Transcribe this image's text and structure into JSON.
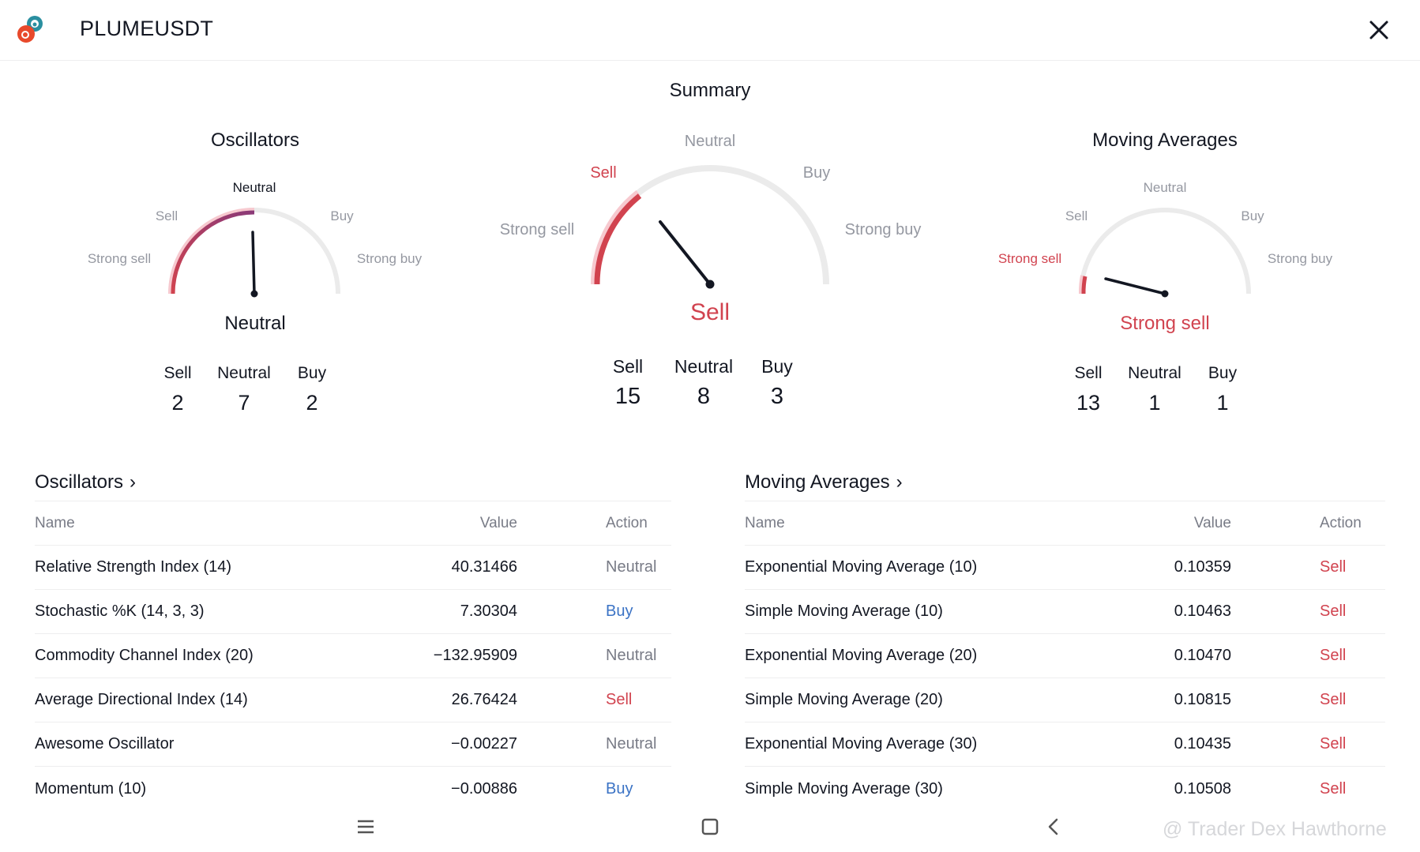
{
  "header": {
    "symbol": "PLUMEUSDT",
    "logo_icon": "plume-logo-icon",
    "close_icon": "close-icon"
  },
  "summary": {
    "title": "Summary",
    "gauge": {
      "labels": {
        "strong_sell": "Strong sell",
        "sell": "Sell",
        "neutral": "Neutral",
        "buy": "Buy",
        "strong_buy": "Strong buy"
      },
      "result": "Sell",
      "counts": [
        {
          "label": "Sell",
          "value": "15"
        },
        {
          "label": "Neutral",
          "value": "8"
        },
        {
          "label": "Buy",
          "value": "3"
        }
      ]
    }
  },
  "oscillators_gauge": {
    "title": "Oscillators",
    "labels": {
      "strong_sell": "Strong sell",
      "sell": "Sell",
      "neutral": "Neutral",
      "buy": "Buy",
      "strong_buy": "Strong buy"
    },
    "result": "Neutral",
    "counts": [
      {
        "label": "Sell",
        "value": "2"
      },
      {
        "label": "Neutral",
        "value": "7"
      },
      {
        "label": "Buy",
        "value": "2"
      }
    ]
  },
  "ma_gauge": {
    "title": "Moving Averages",
    "labels": {
      "strong_sell": "Strong sell",
      "sell": "Sell",
      "neutral": "Neutral",
      "buy": "Buy",
      "strong_buy": "Strong buy"
    },
    "result": "Strong sell",
    "counts": [
      {
        "label": "Sell",
        "value": "13"
      },
      {
        "label": "Neutral",
        "value": "1"
      },
      {
        "label": "Buy",
        "value": "1"
      }
    ]
  },
  "oscillators_table": {
    "heading": "Oscillators",
    "chevron": "›",
    "columns": {
      "name": "Name",
      "value": "Value",
      "action": "Action"
    },
    "rows": [
      {
        "name": "Relative Strength Index (14)",
        "value": "40.31466",
        "action": "Neutral"
      },
      {
        "name": "Stochastic %K (14, 3, 3)",
        "value": "7.30304",
        "action": "Buy"
      },
      {
        "name": "Commodity Channel Index (20)",
        "value": "−132.95909",
        "action": "Neutral"
      },
      {
        "name": "Average Directional Index (14)",
        "value": "26.76424",
        "action": "Sell"
      },
      {
        "name": "Awesome Oscillator",
        "value": "−0.00227",
        "action": "Neutral"
      },
      {
        "name": "Momentum (10)",
        "value": "−0.00886",
        "action": "Buy"
      }
    ]
  },
  "ma_table": {
    "heading": "Moving Averages",
    "chevron": "›",
    "columns": {
      "name": "Name",
      "value": "Value",
      "action": "Action"
    },
    "rows": [
      {
        "name": "Exponential Moving Average (10)",
        "value": "0.10359",
        "action": "Sell"
      },
      {
        "name": "Simple Moving Average (10)",
        "value": "0.10463",
        "action": "Sell"
      },
      {
        "name": "Exponential Moving Average (20)",
        "value": "0.10470",
        "action": "Sell"
      },
      {
        "name": "Simple Moving Average (20)",
        "value": "0.10815",
        "action": "Sell"
      },
      {
        "name": "Exponential Moving Average (30)",
        "value": "0.10435",
        "action": "Sell"
      },
      {
        "name": "Simple Moving Average (30)",
        "value": "0.10508",
        "action": "Sell"
      }
    ]
  },
  "navbar": {
    "menu_icon": "menu-icon",
    "home_icon": "home-square-icon",
    "back_icon": "back-chevron-icon",
    "watermark": "@ Trader Dex Hawthorne"
  },
  "colors": {
    "sell": "#d1434f",
    "buy": "#3b73c5",
    "neutral": "#787b86",
    "text": "#131722",
    "arc_track": "#ebebeb",
    "arc_light": "#f7c9cf"
  }
}
